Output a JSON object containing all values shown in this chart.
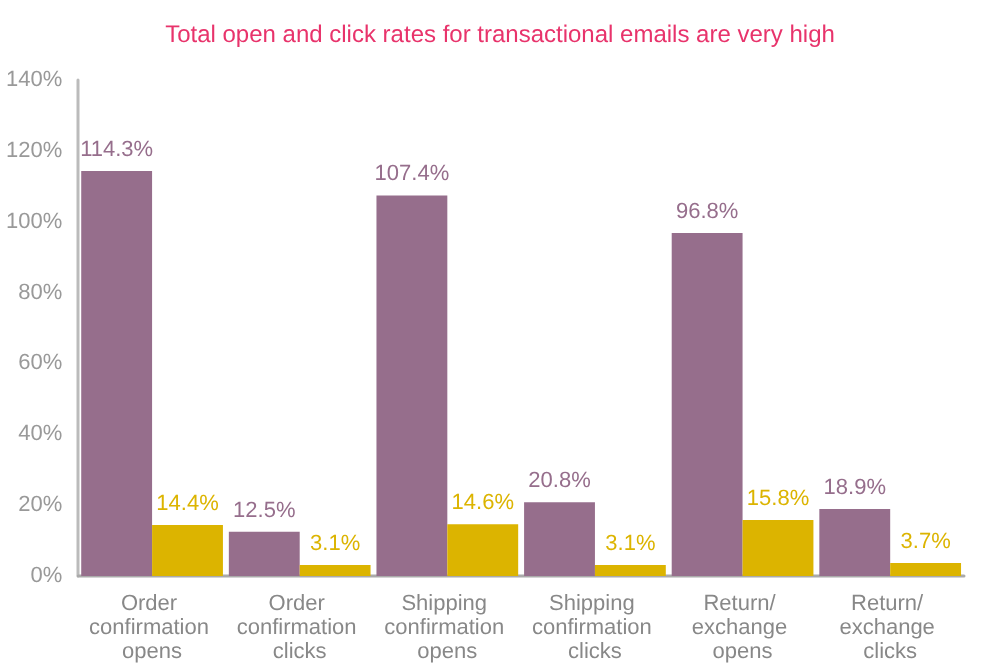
{
  "chart_data": {
    "type": "bar",
    "title": "Total open and click rates for transactional emails are very high",
    "categories": [
      "Order confirmation opens",
      "Order confirmation clicks",
      "Shipping confirmation opens",
      "Shipping confirmation clicks",
      "Return/ exchange opens",
      "Return/ exchange clicks"
    ],
    "series": [
      {
        "color": "#966e8c",
        "values": [
          114.3,
          12.5,
          107.4,
          20.8,
          96.8,
          18.9
        ],
        "value_labels": [
          "114.3%",
          "12.5%",
          "107.4%",
          "20.8%",
          "96.8%",
          "18.9%"
        ]
      },
      {
        "color": "#dcb400",
        "values": [
          14.4,
          3.1,
          14.6,
          3.1,
          15.8,
          3.7
        ],
        "value_labels": [
          "14.4%",
          "3.1%",
          "14.6%",
          "3.1%",
          "15.8%",
          "3.7%"
        ]
      }
    ],
    "ylim": [
      0,
      140
    ],
    "yticks": [
      {
        "value": 0,
        "label": "0%"
      },
      {
        "value": 20,
        "label": "20%"
      },
      {
        "value": 40,
        "label": "40%"
      },
      {
        "value": 60,
        "label": "60%"
      },
      {
        "value": 80,
        "label": "80%"
      },
      {
        "value": 100,
        "label": "100%"
      },
      {
        "value": 120,
        "label": "120%"
      },
      {
        "value": 140,
        "label": "140%"
      }
    ],
    "grid": false
  }
}
